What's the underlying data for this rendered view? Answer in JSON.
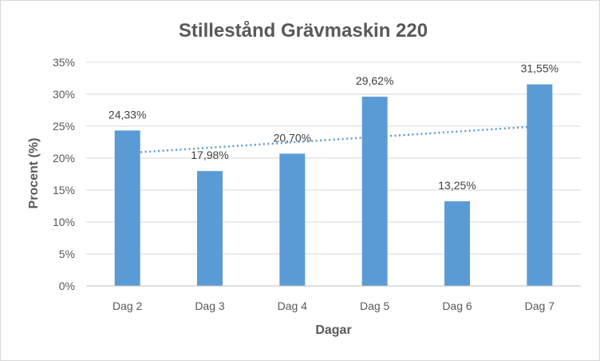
{
  "chart_data": {
    "type": "bar",
    "title": "Stillestånd Grävmaskin 220",
    "xlabel": "Dagar",
    "ylabel": "Procent (%)",
    "categories": [
      "Dag 2",
      "Dag 3",
      "Dag 4",
      "Dag 5",
      "Dag 6",
      "Dag 7"
    ],
    "series": [
      {
        "values": [
          24.33,
          17.98,
          20.7,
          29.62,
          13.25,
          31.55
        ],
        "data_labels": [
          "24,33%",
          "17,98%",
          "20,70%",
          "29,62%",
          "13,25%",
          "31,55%"
        ],
        "color": "#5b9bd5"
      }
    ],
    "ylim": [
      0,
      35
    ],
    "y_ticks": [
      0,
      5,
      10,
      15,
      20,
      25,
      30,
      35
    ],
    "y_tick_labels": [
      "0%",
      "5%",
      "10%",
      "15%",
      "20%",
      "25%",
      "30%",
      "35%"
    ],
    "grid": true,
    "legend": "none",
    "trendline": {
      "type": "linear",
      "style": "dotted",
      "color": "#5b9bd5",
      "from_category": "Dag 2",
      "to_category": "Dag 7",
      "start_value": 20.8,
      "end_value": 25.0
    }
  }
}
